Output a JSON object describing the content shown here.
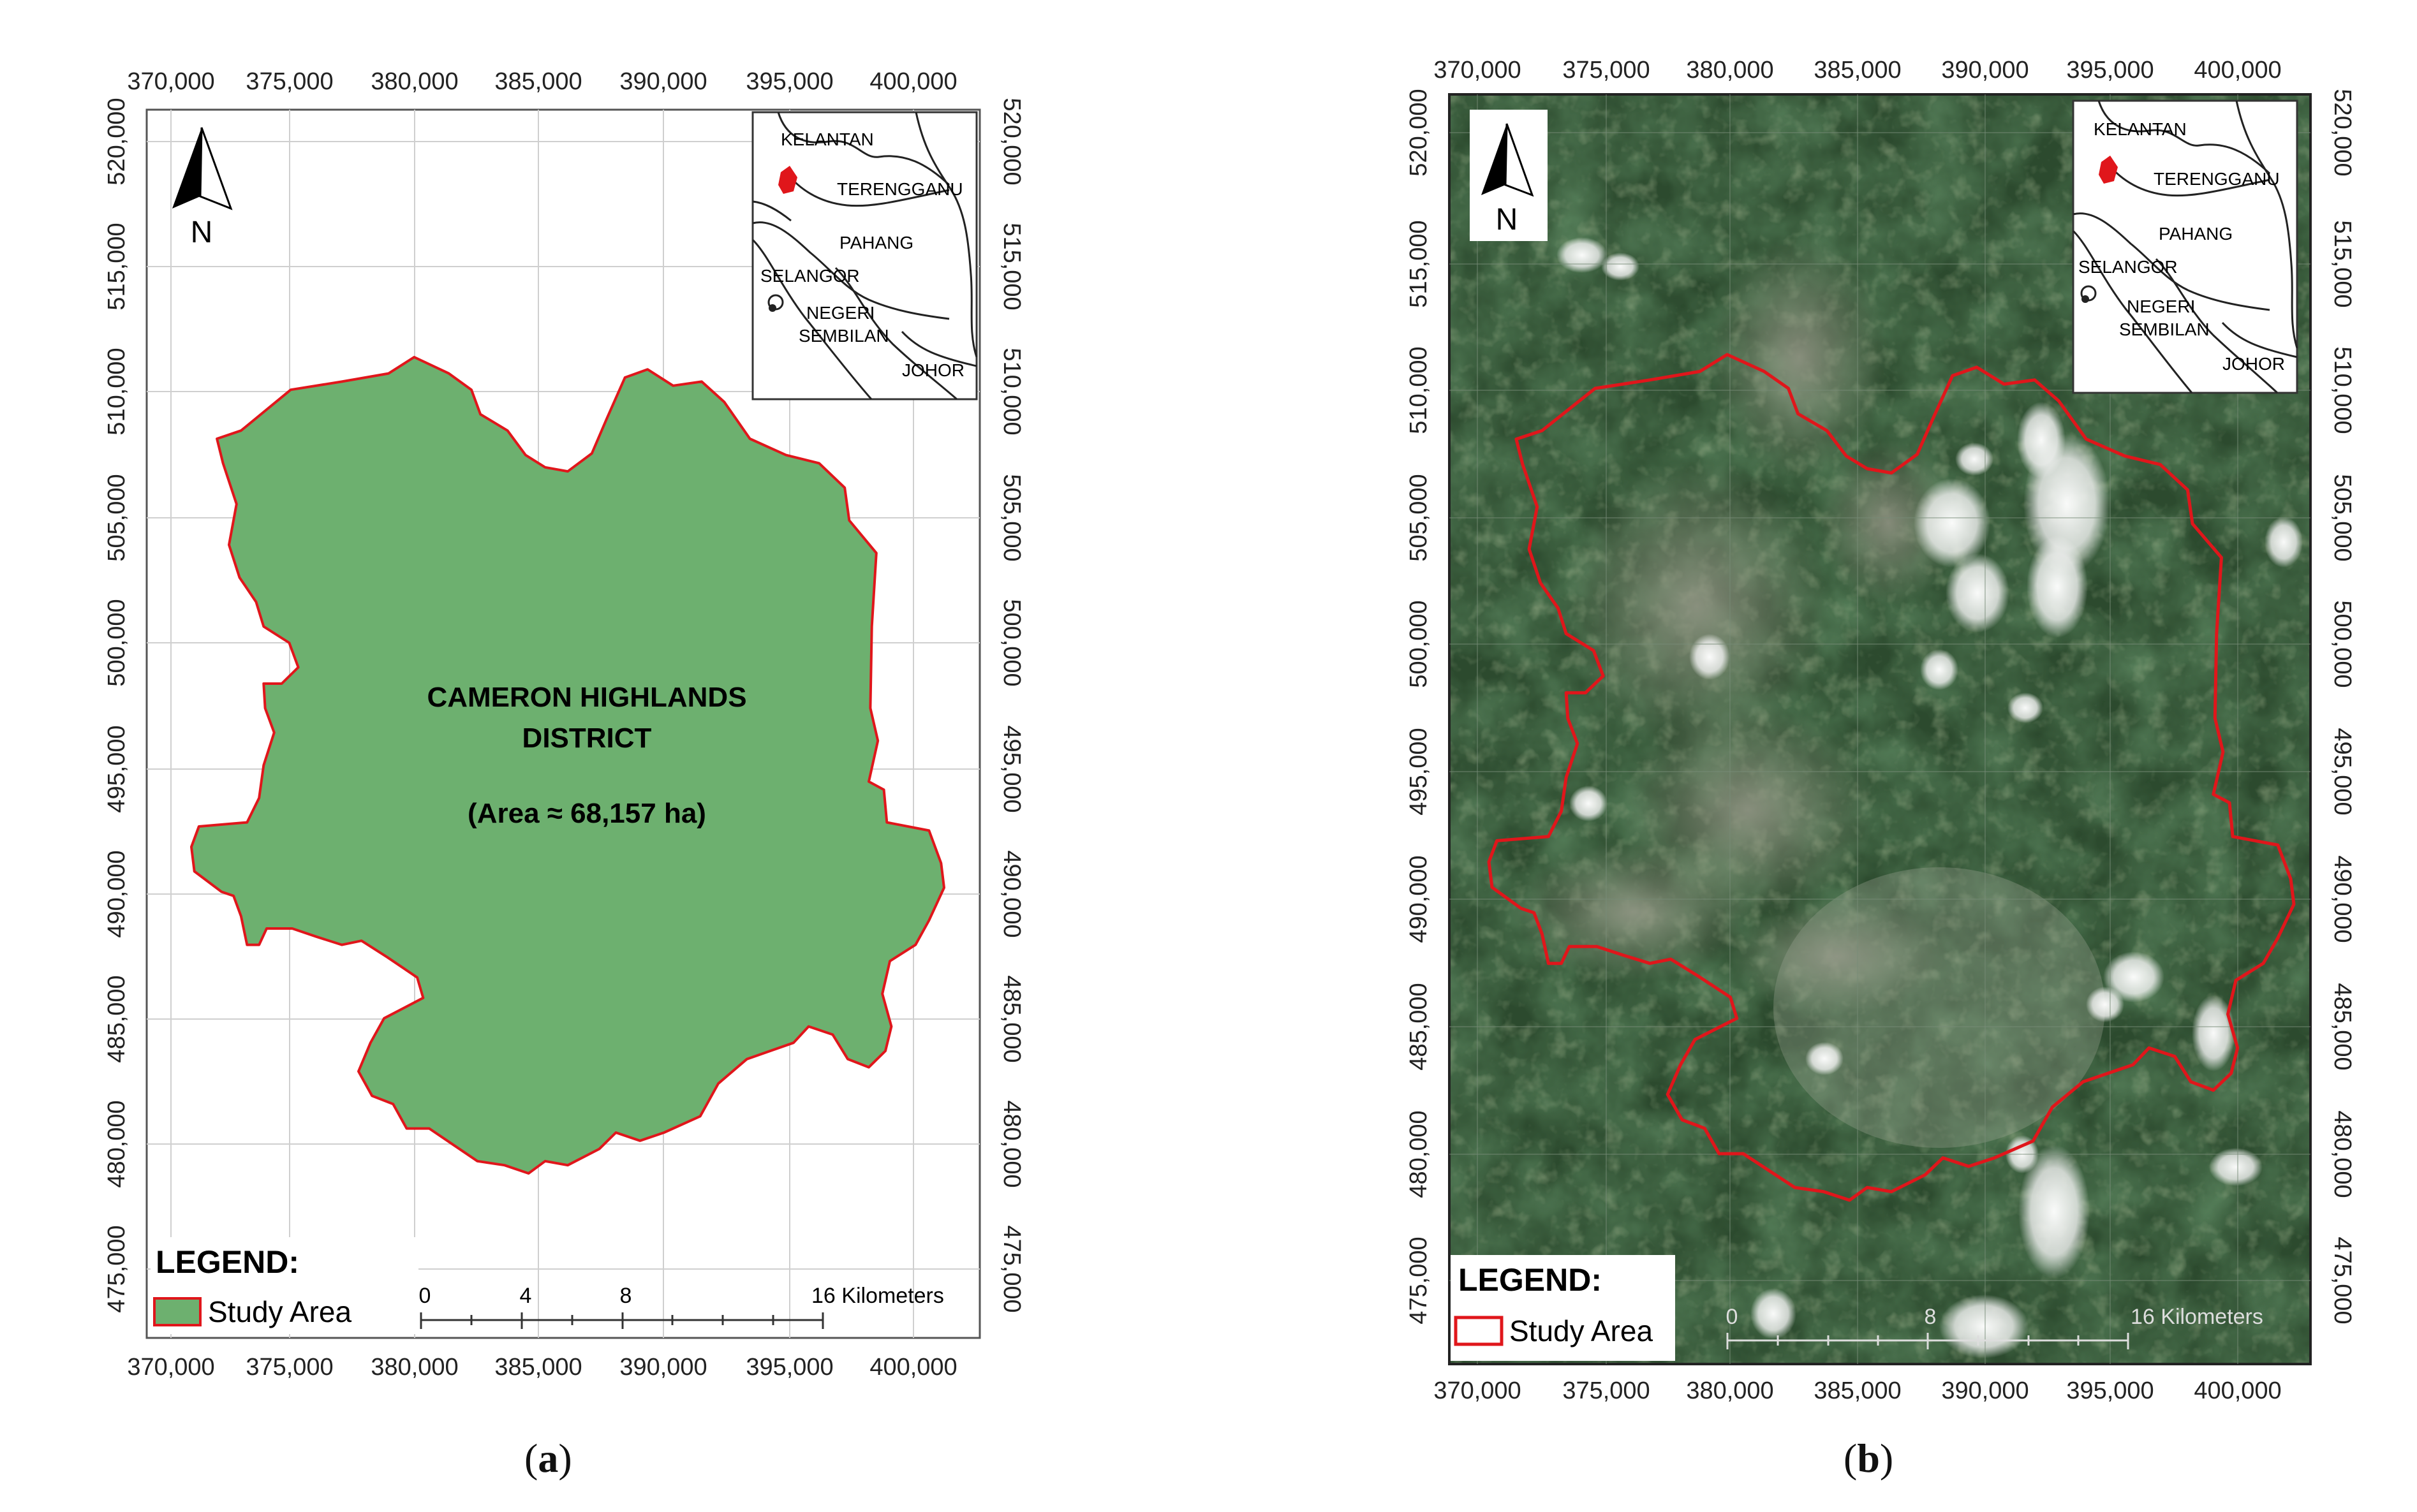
{
  "axes": {
    "x_ticks": [
      "370,000",
      "375,000",
      "380,000",
      "385,000",
      "390,000",
      "395,000",
      "400,000"
    ],
    "y_ticks": [
      "520,000",
      "515,000",
      "510,000",
      "505,000",
      "500,000",
      "495,000",
      "490,000",
      "485,000",
      "480,000",
      "475,000"
    ]
  },
  "inset": {
    "labels": {
      "kelantan": "KELANTAN",
      "terengganu": "TERENGGANU",
      "pahang": "PAHANG",
      "selangor": "SELANGOR",
      "negeri": "NEGERI",
      "sembilan": "SEMBILAN",
      "johor": "JOHOR"
    },
    "highlight_color": "#e0161b"
  },
  "north_arrow": {
    "label": "N"
  },
  "panel_a": {
    "district_name_line1": "CAMERON HIGHLANDS",
    "district_name_line2": "DISTRICT",
    "area_label": "(Area ≈ 68,157 ha)",
    "legend_title": "LEGEND:",
    "legend_item": "Study Area",
    "fill_color": "#6db06f",
    "border_color": "#e0161b",
    "scale_labels": [
      "0",
      "4",
      "8",
      "16 Kilometers"
    ],
    "caption_letter": "a"
  },
  "panel_b": {
    "legend_title": "LEGEND:",
    "legend_item": "Study Area",
    "border_color": "#e0161b",
    "scale_labels": [
      "0",
      "8",
      "16 Kilometers"
    ],
    "caption_letter": "b"
  },
  "caption_open": "(",
  "caption_close": ")"
}
